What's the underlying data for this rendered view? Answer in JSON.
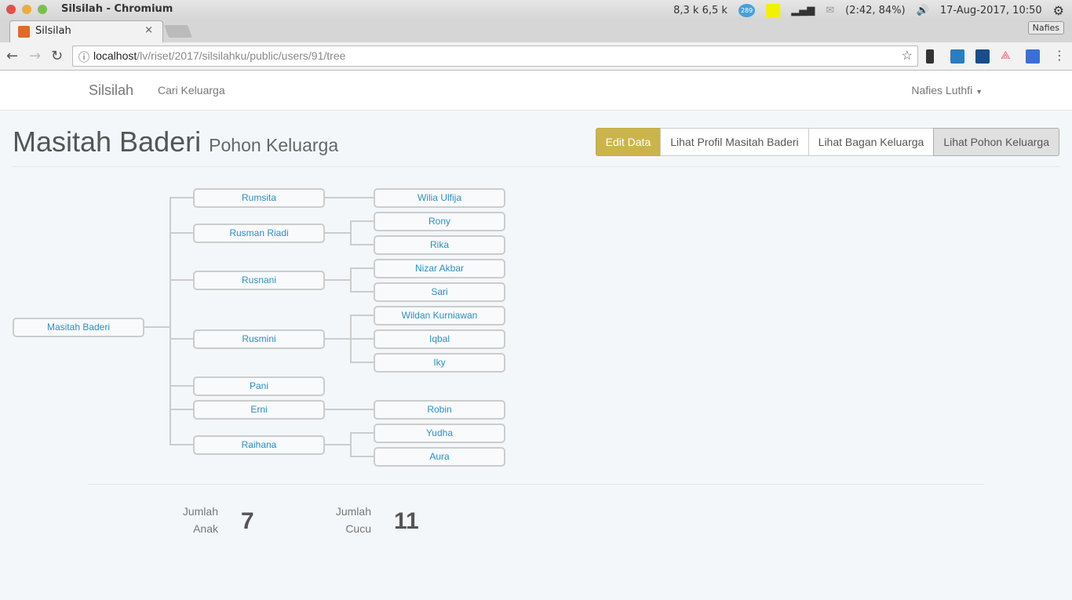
{
  "window": {
    "title": "Silsilah - Chromium"
  },
  "tray": {
    "net": "8,3 k 6,5 k",
    "badge": "289",
    "battery": "(2:42, 84%)",
    "datetime": "17-Aug-2017, 10:50",
    "user": "Nafies"
  },
  "browser": {
    "tab": "Silsilah",
    "url_host": "localhost",
    "url_path": "/lv/riset/2017/silsilahku/public/users/91/tree"
  },
  "nav": {
    "brand": "Silsilah",
    "link": "Cari Keluarga",
    "user": "Nafies Luthfi"
  },
  "page": {
    "title": "Masitah Baderi",
    "subtitle": "Pohon Keluarga",
    "buttons": [
      "Edit Data",
      "Lihat Profil Masitah Baderi",
      "Lihat Bagan Keluarga",
      "Lihat Pohon Keluarga"
    ],
    "colors": {
      "gold": "#cbb44b",
      "link": "#2e8fbf"
    }
  },
  "tree": {
    "root": "Masitah Baderi",
    "children": [
      {
        "name": "Rumsita",
        "children": [
          "Wilia Ulfija"
        ]
      },
      {
        "name": "Rusman Riadi",
        "children": [
          "Rony",
          "Rika"
        ]
      },
      {
        "name": "Rusnani",
        "children": [
          "Nizar Akbar",
          "Sari"
        ]
      },
      {
        "name": "Rusmini",
        "children": [
          "Wildan Kurniawan",
          "Iqbal",
          "Iky"
        ]
      },
      {
        "name": "Pani",
        "children": []
      },
      {
        "name": "Erni",
        "children": [
          "Robin"
        ]
      },
      {
        "name": "Raihana",
        "children": [
          "Yudha",
          "Aura"
        ]
      }
    ]
  },
  "stats": {
    "anak_label1": "Jumlah",
    "anak_label2": "Anak",
    "anak": "7",
    "cucu_label1": "Jumlah",
    "cucu_label2": "Cucu",
    "cucu": "11"
  }
}
